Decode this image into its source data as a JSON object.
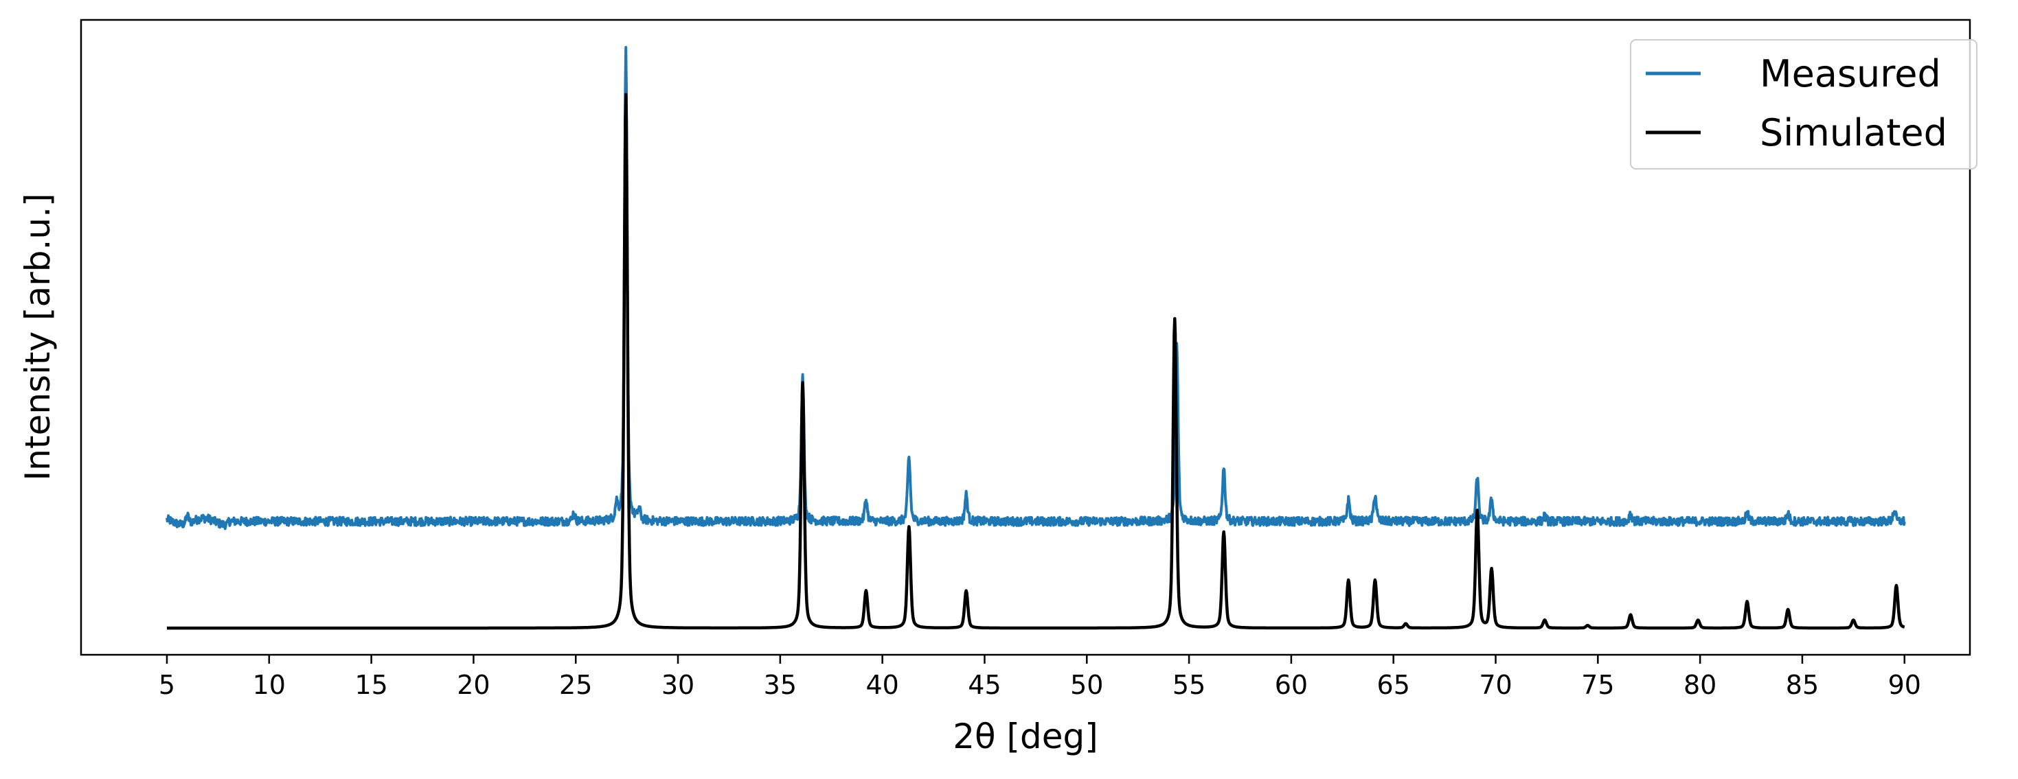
{
  "chart_data": {
    "type": "line",
    "xlabel": "2θ [deg]",
    "ylabel": "Intensity [arb.u.]",
    "xlim": [
      0.8,
      93.2
    ],
    "ylim": [
      -0.05,
      1.14
    ],
    "x_ticks": [
      "5",
      "10",
      "15",
      "20",
      "25",
      "30",
      "35",
      "40",
      "45",
      "50",
      "55",
      "60",
      "65",
      "70",
      "75",
      "80",
      "85",
      "90"
    ],
    "y_ticks_shown": false,
    "legend_position": "top-right",
    "colors": {
      "measured": "#1f77b4",
      "simulated": "#000000"
    },
    "series": [
      {
        "name": "Measured",
        "color": "#1f77b4",
        "baseline": 0.2,
        "noise": 0.008,
        "peaks": [
          {
            "x": 6.0,
            "y": 0.015
          },
          {
            "x": 24.9,
            "y": 0.015
          },
          {
            "x": 27.0,
            "y": 0.03
          },
          {
            "x": 27.45,
            "y": 0.88
          },
          {
            "x": 28.1,
            "y": 0.02
          },
          {
            "x": 36.1,
            "y": 0.27
          },
          {
            "x": 39.2,
            "y": 0.04
          },
          {
            "x": 41.3,
            "y": 0.12
          },
          {
            "x": 44.1,
            "y": 0.05
          },
          {
            "x": 54.4,
            "y": 0.33
          },
          {
            "x": 56.7,
            "y": 0.1
          },
          {
            "x": 62.8,
            "y": 0.04
          },
          {
            "x": 64.1,
            "y": 0.05
          },
          {
            "x": 69.1,
            "y": 0.08
          },
          {
            "x": 69.8,
            "y": 0.04
          },
          {
            "x": 72.4,
            "y": 0.01
          },
          {
            "x": 76.6,
            "y": 0.015
          },
          {
            "x": 82.3,
            "y": 0.015
          },
          {
            "x": 84.3,
            "y": 0.015
          },
          {
            "x": 89.5,
            "y": 0.02
          }
        ]
      },
      {
        "name": "Simulated",
        "color": "#000000",
        "baseline": 0.0,
        "peaks": [
          {
            "x": 27.45,
            "y": 1.0
          },
          {
            "x": 36.1,
            "y": 0.46
          },
          {
            "x": 39.2,
            "y": 0.07
          },
          {
            "x": 41.3,
            "y": 0.19
          },
          {
            "x": 44.1,
            "y": 0.07
          },
          {
            "x": 54.3,
            "y": 0.58
          },
          {
            "x": 56.7,
            "y": 0.18
          },
          {
            "x": 62.8,
            "y": 0.09
          },
          {
            "x": 64.1,
            "y": 0.09
          },
          {
            "x": 65.6,
            "y": 0.008
          },
          {
            "x": 69.1,
            "y": 0.22
          },
          {
            "x": 69.8,
            "y": 0.11
          },
          {
            "x": 72.4,
            "y": 0.015
          },
          {
            "x": 74.5,
            "y": 0.005
          },
          {
            "x": 76.6,
            "y": 0.025
          },
          {
            "x": 79.9,
            "y": 0.015
          },
          {
            "x": 82.3,
            "y": 0.05
          },
          {
            "x": 84.3,
            "y": 0.035
          },
          {
            "x": 87.5,
            "y": 0.015
          },
          {
            "x": 89.6,
            "y": 0.08
          }
        ]
      }
    ],
    "x_range": [
      5,
      90
    ]
  }
}
